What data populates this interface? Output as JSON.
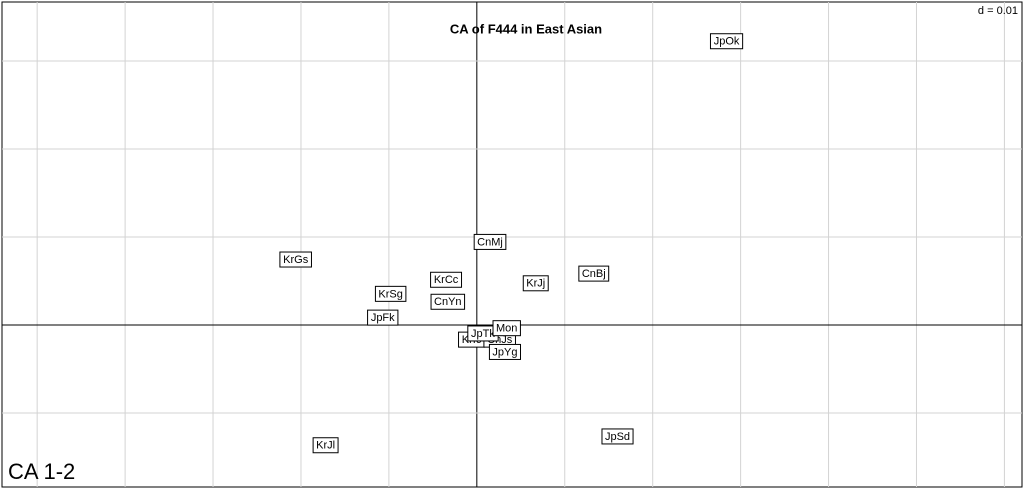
{
  "chart_data": {
    "type": "scatter",
    "title": "CA of F444 in East Asian",
    "annotation": "d = 0.01",
    "panel_label": "CA 1-2",
    "labels": [
      "JpOk",
      "KrGs",
      "CnMj",
      "KrCc",
      "CnBj",
      "KrJj",
      "KrSg",
      "CnYn",
      "JpFk",
      "KrIc",
      "CnJs",
      "JpTk",
      "Mon",
      "JpYg",
      "JpSd",
      "KrJl"
    ],
    "x": [
      0.0284,
      -0.0206,
      0.0015,
      -0.0035,
      0.0133,
      0.0067,
      -0.0098,
      -0.0033,
      -0.0107,
      -0.0006,
      0.0026,
      0.0007,
      0.0034,
      0.0032,
      0.016,
      -0.0172
    ],
    "y": [
      0.0323,
      0.0075,
      0.0095,
      0.0052,
      0.0059,
      0.0048,
      0.0036,
      0.0027,
      0.0009,
      -0.0016,
      -0.0016,
      -0.0009,
      -0.0003,
      -0.003,
      -0.0126,
      -0.0136
    ],
    "xlim": [
      -0.054,
      0.062
    ],
    "ylim": [
      -0.0184,
      0.0367
    ],
    "xticks": [
      -0.05,
      -0.04,
      -0.03,
      -0.02,
      -0.01,
      0,
      0.01,
      0.02,
      0.03,
      0.04,
      0.05,
      0.06
    ],
    "yticks": [
      -0.01,
      0,
      0.01,
      0.02,
      0.03
    ],
    "grid": true,
    "color": "#000000"
  }
}
